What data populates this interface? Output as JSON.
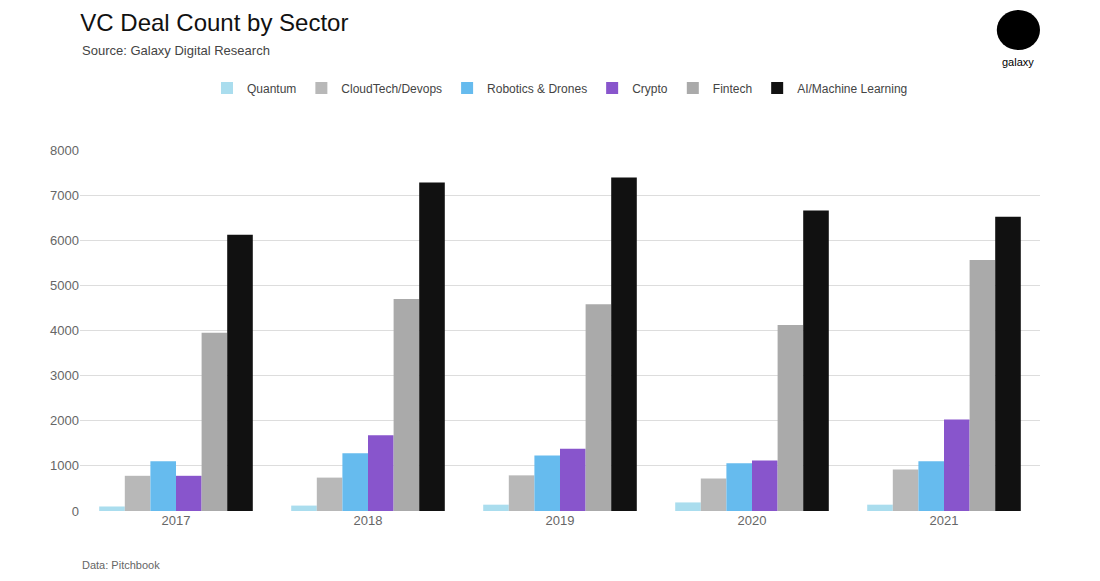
{
  "chart_data": {
    "type": "bar",
    "title": "VC Deal Count by Sector",
    "subtitle": "Source: Galaxy Digital Research",
    "footnote": "Data: Pitchbook",
    "annotations": [
      "galaxy"
    ],
    "categories": [
      "2017",
      "2018",
      "2019",
      "2020",
      "2021"
    ],
    "series": [
      {
        "name": "Quantum",
        "color": "#aaddee",
        "values": [
          100,
          120,
          140,
          190,
          140
        ]
      },
      {
        "name": "CloudTech/Devops",
        "color": "#b8b8b8",
        "values": [
          780,
          740,
          790,
          720,
          920
        ]
      },
      {
        "name": "Robotics & Drones",
        "color": "#66bbee",
        "values": [
          1100,
          1280,
          1230,
          1060,
          1100
        ]
      },
      {
        "name": "Crypto",
        "color": "#8855cc",
        "values": [
          780,
          1680,
          1380,
          1120,
          2030
        ]
      },
      {
        "name": "Fintech",
        "color": "#aaaaaa",
        "values": [
          3950,
          4700,
          4580,
          4120,
          5560
        ]
      },
      {
        "name": "AI/Machine Learning",
        "color": "#111111",
        "values": [
          6120,
          7280,
          7390,
          6660,
          6520
        ]
      }
    ],
    "ylim": [
      0,
      8000
    ],
    "yticks": [
      0,
      1000,
      2000,
      3000,
      4000,
      5000,
      6000,
      7000,
      8000
    ],
    "grid": true,
    "legend": "top"
  }
}
